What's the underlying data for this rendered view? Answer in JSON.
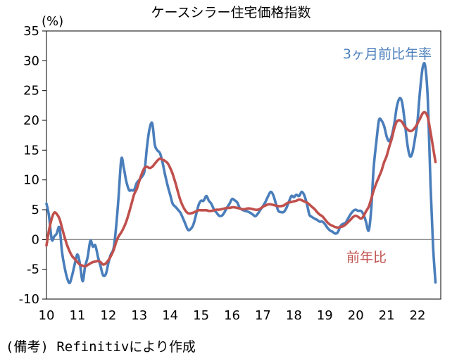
{
  "chart_data": {
    "type": "line",
    "title": "ケースシラー住宅価格指数",
    "unit": "(%)",
    "ylim": [
      -10,
      35
    ],
    "yticks": [
      -10,
      -5,
      0,
      5,
      10,
      15,
      20,
      25,
      30,
      35
    ],
    "xlim": [
      2010,
      2022.75
    ],
    "xtick_labels": [
      "10",
      "11",
      "12",
      "13",
      "14",
      "15",
      "16",
      "17",
      "18",
      "19",
      "20",
      "21",
      "22"
    ],
    "grid": false,
    "zero_line": true,
    "series": [
      {
        "name": "3ヶ月前比年率",
        "color": "#4a7ebb",
        "points": [
          [
            2010.0,
            6.0
          ],
          [
            2010.08,
            4.0
          ],
          [
            2010.17,
            0.0
          ],
          [
            2010.25,
            0.5
          ],
          [
            2010.33,
            1.0
          ],
          [
            2010.42,
            2.0
          ],
          [
            2010.5,
            -2.0
          ],
          [
            2010.58,
            -4.5
          ],
          [
            2010.67,
            -6.5
          ],
          [
            2010.75,
            -7.3
          ],
          [
            2010.83,
            -6.0
          ],
          [
            2010.92,
            -4.0
          ],
          [
            2011.0,
            -2.5
          ],
          [
            2011.08,
            -4.0
          ],
          [
            2011.17,
            -7.0
          ],
          [
            2011.25,
            -4.5
          ],
          [
            2011.33,
            -3.0
          ],
          [
            2011.42,
            -0.2
          ],
          [
            2011.5,
            -1.2
          ],
          [
            2011.58,
            -1.0
          ],
          [
            2011.67,
            -3.0
          ],
          [
            2011.75,
            -4.5
          ],
          [
            2011.83,
            -6.0
          ],
          [
            2011.92,
            -5.8
          ],
          [
            2012.0,
            -4.0
          ],
          [
            2012.08,
            -2.5
          ],
          [
            2012.17,
            -1.5
          ],
          [
            2012.25,
            2.0
          ],
          [
            2012.33,
            7.0
          ],
          [
            2012.42,
            13.5
          ],
          [
            2012.5,
            12.0
          ],
          [
            2012.58,
            9.8
          ],
          [
            2012.67,
            8.3
          ],
          [
            2012.75,
            8.3
          ],
          [
            2012.83,
            8.3
          ],
          [
            2012.92,
            9.5
          ],
          [
            2013.0,
            10.0
          ],
          [
            2013.08,
            10.5
          ],
          [
            2013.17,
            11.5
          ],
          [
            2013.25,
            15.5
          ],
          [
            2013.33,
            18.5
          ],
          [
            2013.42,
            19.5
          ],
          [
            2013.5,
            16.0
          ],
          [
            2013.58,
            15.0
          ],
          [
            2013.67,
            14.5
          ],
          [
            2013.75,
            13.0
          ],
          [
            2013.83,
            11.0
          ],
          [
            2013.92,
            9.0
          ],
          [
            2014.0,
            7.5
          ],
          [
            2014.08,
            6.0
          ],
          [
            2014.17,
            5.5
          ],
          [
            2014.25,
            5.0
          ],
          [
            2014.33,
            4.5
          ],
          [
            2014.42,
            3.5
          ],
          [
            2014.5,
            2.5
          ],
          [
            2014.58,
            1.6
          ],
          [
            2014.67,
            1.8
          ],
          [
            2014.75,
            2.5
          ],
          [
            2014.83,
            4.0
          ],
          [
            2014.92,
            5.8
          ],
          [
            2015.0,
            6.5
          ],
          [
            2015.08,
            6.5
          ],
          [
            2015.17,
            7.3
          ],
          [
            2015.25,
            6.5
          ],
          [
            2015.33,
            6.0
          ],
          [
            2015.42,
            5.0
          ],
          [
            2015.5,
            4.5
          ],
          [
            2015.58,
            4.0
          ],
          [
            2015.67,
            4.0
          ],
          [
            2015.75,
            4.5
          ],
          [
            2015.83,
            5.3
          ],
          [
            2015.92,
            6.0
          ],
          [
            2016.0,
            6.8
          ],
          [
            2016.08,
            6.6
          ],
          [
            2016.17,
            6.2
          ],
          [
            2016.25,
            5.3
          ],
          [
            2016.33,
            5.0
          ],
          [
            2016.42,
            4.8
          ],
          [
            2016.5,
            4.7
          ],
          [
            2016.58,
            4.5
          ],
          [
            2016.67,
            4.2
          ],
          [
            2016.75,
            3.9
          ],
          [
            2016.83,
            4.3
          ],
          [
            2016.92,
            5.0
          ],
          [
            2017.0,
            5.6
          ],
          [
            2017.08,
            6.3
          ],
          [
            2017.17,
            7.3
          ],
          [
            2017.25,
            8.0
          ],
          [
            2017.33,
            7.5
          ],
          [
            2017.42,
            6.0
          ],
          [
            2017.5,
            4.8
          ],
          [
            2017.58,
            4.6
          ],
          [
            2017.67,
            4.6
          ],
          [
            2017.75,
            5.2
          ],
          [
            2017.83,
            6.2
          ],
          [
            2017.92,
            7.3
          ],
          [
            2018.0,
            7.1
          ],
          [
            2018.08,
            7.5
          ],
          [
            2018.17,
            7.3
          ],
          [
            2018.25,
            8.0
          ],
          [
            2018.33,
            7.5
          ],
          [
            2018.42,
            6.0
          ],
          [
            2018.5,
            4.2
          ],
          [
            2018.58,
            3.8
          ],
          [
            2018.67,
            3.5
          ],
          [
            2018.75,
            3.3
          ],
          [
            2018.83,
            3.0
          ],
          [
            2018.92,
            3.0
          ],
          [
            2019.0,
            2.6
          ],
          [
            2019.08,
            2.0
          ],
          [
            2019.17,
            1.5
          ],
          [
            2019.25,
            1.3
          ],
          [
            2019.33,
            1.0
          ],
          [
            2019.42,
            1.2
          ],
          [
            2019.5,
            2.2
          ],
          [
            2019.58,
            2.6
          ],
          [
            2019.67,
            2.8
          ],
          [
            2019.75,
            3.5
          ],
          [
            2019.83,
            4.2
          ],
          [
            2019.92,
            4.8
          ],
          [
            2020.0,
            5.0
          ],
          [
            2020.08,
            4.8
          ],
          [
            2020.17,
            4.8
          ],
          [
            2020.25,
            4.2
          ],
          [
            2020.33,
            3.0
          ],
          [
            2020.42,
            1.5
          ],
          [
            2020.5,
            5.0
          ],
          [
            2020.58,
            12.0
          ],
          [
            2020.67,
            16.5
          ],
          [
            2020.75,
            20.0
          ],
          [
            2020.83,
            20.0
          ],
          [
            2020.92,
            19.0
          ],
          [
            2021.0,
            17.3
          ],
          [
            2021.08,
            16.5
          ],
          [
            2021.17,
            17.5
          ],
          [
            2021.25,
            19.5
          ],
          [
            2021.33,
            22.3
          ],
          [
            2021.42,
            23.7
          ],
          [
            2021.5,
            23.0
          ],
          [
            2021.58,
            20.0
          ],
          [
            2021.67,
            16.0
          ],
          [
            2021.75,
            14.0
          ],
          [
            2021.83,
            14.5
          ],
          [
            2021.92,
            17.0
          ],
          [
            2022.0,
            20.0
          ],
          [
            2022.08,
            25.0
          ],
          [
            2022.17,
            29.0
          ],
          [
            2022.25,
            29.0
          ],
          [
            2022.33,
            23.5
          ],
          [
            2022.42,
            9.0
          ],
          [
            2022.5,
            -1.0
          ],
          [
            2022.58,
            -7.2
          ]
        ]
      },
      {
        "name": "前年比",
        "color": "#c0504d",
        "points": [
          [
            2010.0,
            -1.0
          ],
          [
            2010.08,
            1.5
          ],
          [
            2010.17,
            3.5
          ],
          [
            2010.25,
            4.5
          ],
          [
            2010.33,
            4.3
          ],
          [
            2010.42,
            3.5
          ],
          [
            2010.5,
            2.0
          ],
          [
            2010.58,
            0.5
          ],
          [
            2010.67,
            -1.0
          ],
          [
            2010.75,
            -2.0
          ],
          [
            2010.83,
            -2.8
          ],
          [
            2010.92,
            -3.3
          ],
          [
            2011.0,
            -3.8
          ],
          [
            2011.08,
            -4.2
          ],
          [
            2011.17,
            -4.4
          ],
          [
            2011.25,
            -4.5
          ],
          [
            2011.33,
            -4.3
          ],
          [
            2011.42,
            -4.0
          ],
          [
            2011.5,
            -3.8
          ],
          [
            2011.58,
            -3.7
          ],
          [
            2011.67,
            -3.6
          ],
          [
            2011.75,
            -3.8
          ],
          [
            2011.83,
            -4.2
          ],
          [
            2011.92,
            -4.0
          ],
          [
            2012.0,
            -3.5
          ],
          [
            2012.08,
            -2.8
          ],
          [
            2012.17,
            -1.8
          ],
          [
            2012.25,
            -0.5
          ],
          [
            2012.33,
            0.5
          ],
          [
            2012.42,
            1.2
          ],
          [
            2012.5,
            2.0
          ],
          [
            2012.58,
            3.0
          ],
          [
            2012.67,
            4.5
          ],
          [
            2012.75,
            6.0
          ],
          [
            2012.83,
            7.5
          ],
          [
            2012.92,
            8.5
          ],
          [
            2013.0,
            9.8
          ],
          [
            2013.08,
            11.0
          ],
          [
            2013.17,
            12.0
          ],
          [
            2013.25,
            12.2
          ],
          [
            2013.33,
            12.0
          ],
          [
            2013.42,
            12.2
          ],
          [
            2013.5,
            12.7
          ],
          [
            2013.58,
            13.2
          ],
          [
            2013.67,
            13.6
          ],
          [
            2013.75,
            13.4
          ],
          [
            2013.83,
            13.2
          ],
          [
            2013.92,
            12.8
          ],
          [
            2014.0,
            12.0
          ],
          [
            2014.08,
            11.0
          ],
          [
            2014.17,
            9.5
          ],
          [
            2014.25,
            8.0
          ],
          [
            2014.33,
            6.6
          ],
          [
            2014.42,
            5.5
          ],
          [
            2014.5,
            4.8
          ],
          [
            2014.58,
            4.4
          ],
          [
            2014.67,
            4.4
          ],
          [
            2014.75,
            4.5
          ],
          [
            2014.83,
            4.7
          ],
          [
            2014.92,
            4.9
          ],
          [
            2015.0,
            4.9
          ],
          [
            2015.08,
            4.9
          ],
          [
            2015.17,
            4.9
          ],
          [
            2015.25,
            4.8
          ],
          [
            2015.33,
            4.8
          ],
          [
            2015.42,
            4.9
          ],
          [
            2015.5,
            5.0
          ],
          [
            2015.58,
            5.0
          ],
          [
            2015.67,
            5.1
          ],
          [
            2015.75,
            5.2
          ],
          [
            2015.83,
            5.3
          ],
          [
            2015.92,
            5.3
          ],
          [
            2016.0,
            5.4
          ],
          [
            2016.08,
            5.4
          ],
          [
            2016.17,
            5.3
          ],
          [
            2016.25,
            5.2
          ],
          [
            2016.33,
            5.1
          ],
          [
            2016.42,
            5.1
          ],
          [
            2016.5,
            5.2
          ],
          [
            2016.58,
            5.2
          ],
          [
            2016.67,
            5.1
          ],
          [
            2016.75,
            5.0
          ],
          [
            2016.83,
            5.0
          ],
          [
            2016.92,
            5.2
          ],
          [
            2017.0,
            5.5
          ],
          [
            2017.08,
            5.7
          ],
          [
            2017.17,
            5.9
          ],
          [
            2017.25,
            5.9
          ],
          [
            2017.33,
            5.8
          ],
          [
            2017.42,
            5.7
          ],
          [
            2017.5,
            5.6
          ],
          [
            2017.58,
            5.6
          ],
          [
            2017.67,
            5.7
          ],
          [
            2017.75,
            6.0
          ],
          [
            2017.83,
            6.2
          ],
          [
            2017.92,
            6.3
          ],
          [
            2018.0,
            6.4
          ],
          [
            2018.08,
            6.5
          ],
          [
            2018.17,
            6.7
          ],
          [
            2018.25,
            6.6
          ],
          [
            2018.33,
            6.4
          ],
          [
            2018.42,
            6.2
          ],
          [
            2018.5,
            5.9
          ],
          [
            2018.58,
            5.5
          ],
          [
            2018.67,
            5.1
          ],
          [
            2018.75,
            4.6
          ],
          [
            2018.83,
            4.2
          ],
          [
            2018.92,
            3.9
          ],
          [
            2019.0,
            3.4
          ],
          [
            2019.08,
            2.9
          ],
          [
            2019.17,
            2.5
          ],
          [
            2019.25,
            2.3
          ],
          [
            2019.33,
            2.1
          ],
          [
            2019.42,
            2.0
          ],
          [
            2019.5,
            2.1
          ],
          [
            2019.58,
            2.2
          ],
          [
            2019.67,
            2.5
          ],
          [
            2019.75,
            2.9
          ],
          [
            2019.83,
            3.3
          ],
          [
            2019.92,
            3.8
          ],
          [
            2020.0,
            4.0
          ],
          [
            2020.08,
            3.8
          ],
          [
            2020.17,
            3.5
          ],
          [
            2020.25,
            3.9
          ],
          [
            2020.33,
            4.7
          ],
          [
            2020.42,
            5.5
          ],
          [
            2020.5,
            6.8
          ],
          [
            2020.58,
            8.2
          ],
          [
            2020.67,
            9.5
          ],
          [
            2020.75,
            10.5
          ],
          [
            2020.83,
            11.5
          ],
          [
            2020.92,
            13.0
          ],
          [
            2021.0,
            14.0
          ],
          [
            2021.08,
            15.5
          ],
          [
            2021.17,
            17.0
          ],
          [
            2021.25,
            18.7
          ],
          [
            2021.33,
            19.8
          ],
          [
            2021.42,
            20.0
          ],
          [
            2021.5,
            19.7
          ],
          [
            2021.58,
            19.0
          ],
          [
            2021.67,
            18.5
          ],
          [
            2021.75,
            18.2
          ],
          [
            2021.83,
            18.3
          ],
          [
            2021.92,
            18.8
          ],
          [
            2022.0,
            19.5
          ],
          [
            2022.08,
            20.3
          ],
          [
            2022.17,
            21.2
          ],
          [
            2022.25,
            21.3
          ],
          [
            2022.33,
            20.5
          ],
          [
            2022.42,
            18.0
          ],
          [
            2022.5,
            15.5
          ],
          [
            2022.58,
            13.0
          ]
        ]
      }
    ]
  },
  "footnote": "(備考) Refinitivにより作成"
}
